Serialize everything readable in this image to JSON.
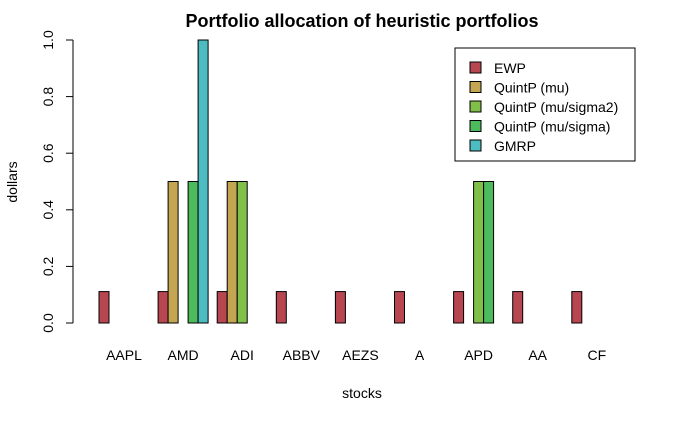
{
  "chart_data": {
    "type": "bar",
    "title": "Portfolio allocation of heuristic portfolios",
    "xlabel": "stocks",
    "ylabel": "dollars",
    "ylim": [
      0,
      1
    ],
    "yticks": [
      "0.0",
      "0.2",
      "0.4",
      "0.6",
      "0.8",
      "1.0"
    ],
    "categories": [
      "AAPL",
      "AMD",
      "ADI",
      "ABBV",
      "AEZS",
      "A",
      "APD",
      "AA",
      "CF"
    ],
    "grid": false,
    "legend_position": "top-right",
    "series": [
      {
        "name": "EWP",
        "color": "#B74650",
        "values": [
          0.111,
          0.111,
          0.111,
          0.111,
          0.111,
          0.111,
          0.111,
          0.111,
          0.111
        ]
      },
      {
        "name": "QuintP (mu)",
        "color": "#C3A552",
        "values": [
          0,
          0.5,
          0.5,
          0,
          0,
          0,
          0,
          0,
          0
        ]
      },
      {
        "name": "QuintP (mu/sigma2)",
        "color": "#7FBF4A",
        "values": [
          0,
          0,
          0.5,
          0,
          0,
          0,
          0.5,
          0,
          0
        ]
      },
      {
        "name": "QuintP (mu/sigma)",
        "color": "#4DBB5B",
        "values": [
          0,
          0.5,
          0,
          0,
          0,
          0,
          0.5,
          0,
          0
        ]
      },
      {
        "name": "GMRP",
        "color": "#4CBCC0",
        "values": [
          0,
          1.0,
          0,
          0,
          0,
          0,
          0,
          0,
          0
        ]
      }
    ]
  }
}
